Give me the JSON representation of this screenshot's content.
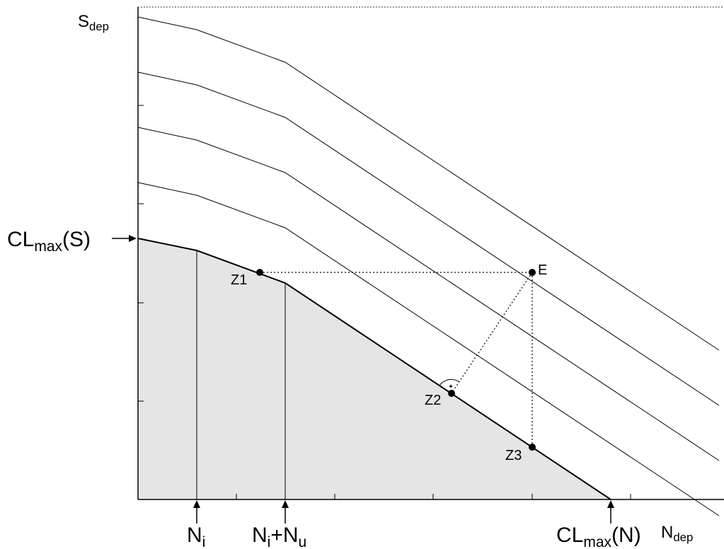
{
  "axes": {
    "y_label": {
      "main": "S",
      "sub": "dep"
    },
    "x_label": {
      "main": "N",
      "sub": "dep"
    }
  },
  "markers": {
    "cl_max_s": {
      "pre": "CL",
      "sub": "max",
      "post": "(S)"
    },
    "n_i": {
      "main": "N",
      "sub": "i"
    },
    "n_i_plus_n_u": {
      "main1": "N",
      "sub1": "i",
      "plus": "+",
      "main2": "N",
      "sub2": "u"
    },
    "cl_max_n": {
      "pre": "CL",
      "sub": "max",
      "post": "(N)"
    }
  },
  "points": {
    "z1": "Z1",
    "z2": "Z2",
    "z3": "Z3",
    "e": "E"
  },
  "colors": {
    "region_fill": "#e5e5e5",
    "ink": "#000000",
    "background": "#ffffff"
  }
}
